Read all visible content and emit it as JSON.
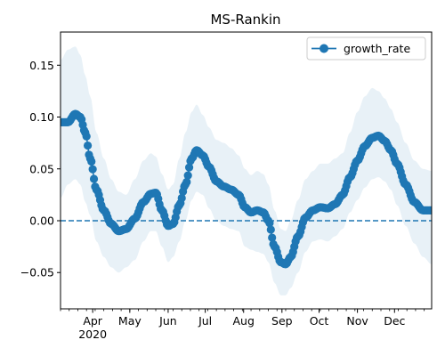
{
  "chart_data": {
    "type": "line",
    "title": "MS-Rankin",
    "xlabel": "",
    "ylabel": "",
    "x_start": "2020-03-06",
    "x_end": "2020-12-31",
    "xlim": [
      "2020-03-06",
      "2020-12-31"
    ],
    "ylim": [
      -0.085,
      0.182
    ],
    "y_ticks": [
      {
        "value": -0.05,
        "label": "−0.05"
      },
      {
        "value": 0.0,
        "label": "0.00"
      },
      {
        "value": 0.05,
        "label": "0.05"
      },
      {
        "value": 0.1,
        "label": "0.10"
      },
      {
        "value": 0.15,
        "label": "0.15"
      }
    ],
    "x_ticks": [
      {
        "date": "2020-04-01",
        "label": "Apr",
        "sublabel": "2020"
      },
      {
        "date": "2020-05-01",
        "label": "May"
      },
      {
        "date": "2020-06-01",
        "label": "Jun"
      },
      {
        "date": "2020-07-01",
        "label": "Jul"
      },
      {
        "date": "2020-08-01",
        "label": "Aug"
      },
      {
        "date": "2020-09-01",
        "label": "Sep"
      },
      {
        "date": "2020-10-01",
        "label": "Oct"
      },
      {
        "date": "2020-11-01",
        "label": "Nov"
      },
      {
        "date": "2020-12-01",
        "label": "Dec"
      }
    ],
    "reference_line": {
      "y": 0.0,
      "style": "dashed",
      "color": "#1f77b4"
    },
    "series": [
      {
        "name": "growth_rate",
        "color": "#1f77b4",
        "marker": "circle",
        "anchors": [
          {
            "date": "2020-03-06",
            "y": 0.095,
            "lower": 0.022,
            "upper": 0.155
          },
          {
            "date": "2020-03-12",
            "y": 0.095,
            "lower": 0.035,
            "upper": 0.165
          },
          {
            "date": "2020-03-18",
            "y": 0.103,
            "lower": 0.04,
            "upper": 0.168
          },
          {
            "date": "2020-03-22",
            "y": 0.1,
            "lower": 0.035,
            "upper": 0.16
          },
          {
            "date": "2020-03-26",
            "y": 0.085,
            "lower": 0.018,
            "upper": 0.14
          },
          {
            "date": "2020-03-30",
            "y": 0.06,
            "lower": 0.005,
            "upper": 0.12
          },
          {
            "date": "2020-04-04",
            "y": 0.03,
            "lower": -0.02,
            "upper": 0.085
          },
          {
            "date": "2020-04-10",
            "y": 0.01,
            "lower": -0.035,
            "upper": 0.06
          },
          {
            "date": "2020-04-16",
            "y": -0.003,
            "lower": -0.045,
            "upper": 0.04
          },
          {
            "date": "2020-04-22",
            "y": -0.01,
            "lower": -0.05,
            "upper": 0.028
          },
          {
            "date": "2020-04-28",
            "y": -0.008,
            "lower": -0.045,
            "upper": 0.025
          },
          {
            "date": "2020-05-05",
            "y": 0.002,
            "lower": -0.038,
            "upper": 0.04
          },
          {
            "date": "2020-05-12",
            "y": 0.018,
            "lower": -0.02,
            "upper": 0.058
          },
          {
            "date": "2020-05-18",
            "y": 0.026,
            "lower": -0.01,
            "upper": 0.065
          },
          {
            "date": "2020-05-22",
            "y": 0.027,
            "lower": -0.01,
            "upper": 0.062
          },
          {
            "date": "2020-05-27",
            "y": 0.01,
            "lower": -0.025,
            "upper": 0.045
          },
          {
            "date": "2020-06-01",
            "y": -0.005,
            "lower": -0.04,
            "upper": 0.03
          },
          {
            "date": "2020-06-05",
            "y": -0.003,
            "lower": -0.035,
            "upper": 0.035
          },
          {
            "date": "2020-06-10",
            "y": 0.015,
            "lower": -0.02,
            "upper": 0.06
          },
          {
            "date": "2020-06-15",
            "y": 0.035,
            "lower": 0.0,
            "upper": 0.085
          },
          {
            "date": "2020-06-20",
            "y": 0.06,
            "lower": 0.02,
            "upper": 0.105
          },
          {
            "date": "2020-06-24",
            "y": 0.068,
            "lower": 0.028,
            "upper": 0.112
          },
          {
            "date": "2020-06-29",
            "y": 0.063,
            "lower": 0.025,
            "upper": 0.102
          },
          {
            "date": "2020-07-04",
            "y": 0.052,
            "lower": 0.012,
            "upper": 0.09
          },
          {
            "date": "2020-07-10",
            "y": 0.038,
            "lower": 0.0,
            "upper": 0.078
          },
          {
            "date": "2020-07-16",
            "y": 0.033,
            "lower": -0.005,
            "upper": 0.075
          },
          {
            "date": "2020-07-22",
            "y": 0.03,
            "lower": -0.008,
            "upper": 0.07
          },
          {
            "date": "2020-07-28",
            "y": 0.025,
            "lower": -0.01,
            "upper": 0.063
          },
          {
            "date": "2020-08-02",
            "y": 0.013,
            "lower": -0.025,
            "upper": 0.05
          },
          {
            "date": "2020-08-07",
            "y": 0.008,
            "lower": -0.028,
            "upper": 0.044
          },
          {
            "date": "2020-08-12",
            "y": 0.01,
            "lower": -0.03,
            "upper": 0.048
          },
          {
            "date": "2020-08-17",
            "y": 0.008,
            "lower": -0.032,
            "upper": 0.045
          },
          {
            "date": "2020-08-21",
            "y": 0.0,
            "lower": -0.04,
            "upper": 0.035
          },
          {
            "date": "2020-08-26",
            "y": -0.025,
            "lower": -0.06,
            "upper": 0.01
          },
          {
            "date": "2020-08-31",
            "y": -0.04,
            "lower": -0.072,
            "upper": -0.008
          },
          {
            "date": "2020-09-04",
            "y": -0.042,
            "lower": -0.072,
            "upper": -0.01
          },
          {
            "date": "2020-09-08",
            "y": -0.035,
            "lower": -0.065,
            "upper": 0.0
          },
          {
            "date": "2020-09-14",
            "y": -0.015,
            "lower": -0.05,
            "upper": 0.02
          },
          {
            "date": "2020-09-20",
            "y": 0.003,
            "lower": -0.03,
            "upper": 0.04
          },
          {
            "date": "2020-09-26",
            "y": 0.01,
            "lower": -0.02,
            "upper": 0.048
          },
          {
            "date": "2020-10-02",
            "y": 0.013,
            "lower": -0.018,
            "upper": 0.055
          },
          {
            "date": "2020-10-08",
            "y": 0.012,
            "lower": -0.02,
            "upper": 0.055
          },
          {
            "date": "2020-10-14",
            "y": 0.016,
            "lower": -0.015,
            "upper": 0.06
          },
          {
            "date": "2020-10-20",
            "y": 0.025,
            "lower": -0.008,
            "upper": 0.065
          },
          {
            "date": "2020-10-26",
            "y": 0.042,
            "lower": 0.008,
            "upper": 0.085
          },
          {
            "date": "2020-11-01",
            "y": 0.058,
            "lower": 0.02,
            "upper": 0.105
          },
          {
            "date": "2020-11-07",
            "y": 0.072,
            "lower": 0.032,
            "upper": 0.12
          },
          {
            "date": "2020-11-13",
            "y": 0.08,
            "lower": 0.04,
            "upper": 0.128
          },
          {
            "date": "2020-11-18",
            "y": 0.082,
            "lower": 0.042,
            "upper": 0.125
          },
          {
            "date": "2020-11-23",
            "y": 0.077,
            "lower": 0.038,
            "upper": 0.118
          },
          {
            "date": "2020-11-28",
            "y": 0.068,
            "lower": 0.03,
            "upper": 0.108
          },
          {
            "date": "2020-12-03",
            "y": 0.055,
            "lower": 0.015,
            "upper": 0.095
          },
          {
            "date": "2020-12-10",
            "y": 0.035,
            "lower": -0.005,
            "upper": 0.075
          },
          {
            "date": "2020-12-17",
            "y": 0.018,
            "lower": -0.022,
            "upper": 0.058
          },
          {
            "date": "2020-12-24",
            "y": 0.01,
            "lower": -0.035,
            "upper": 0.05
          },
          {
            "date": "2020-12-31",
            "y": 0.01,
            "lower": -0.042,
            "upper": 0.048
          }
        ]
      }
    ],
    "band_color": "#1f77b4",
    "legend": {
      "position": "top-right"
    },
    "grid": false
  }
}
